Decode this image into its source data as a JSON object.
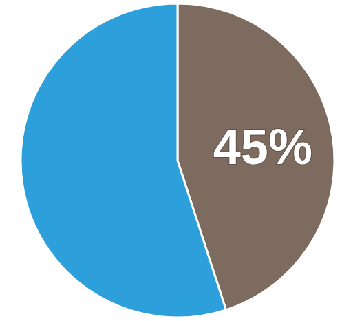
{
  "chart_data": {
    "type": "pie",
    "values": [
      45,
      55
    ],
    "value_labels": [
      "45%",
      null
    ],
    "colors": [
      "#7d6b60",
      "#2d9fdb"
    ],
    "data_labels": true
  }
}
